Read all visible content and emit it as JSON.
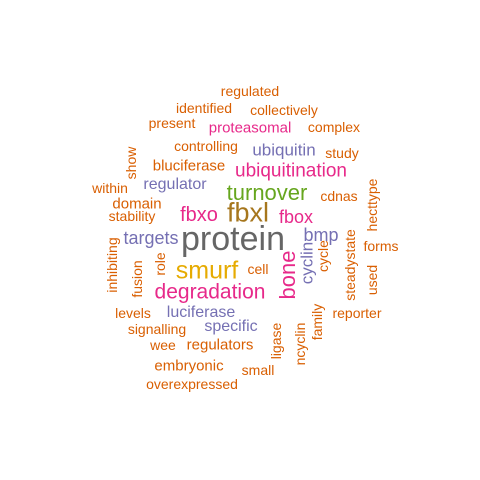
{
  "colors": {
    "orange": "#d95f02",
    "magenta": "#e7298a",
    "purple": "#7570b3",
    "green": "#66a61e",
    "gold": "#e6ab02",
    "brown": "#a6761d",
    "gray": "#666666",
    "pink": "#cc0077"
  },
  "words": [
    {
      "text": "regulated",
      "color": "orange"
    },
    {
      "text": "identified",
      "color": "orange"
    },
    {
      "text": "collectively",
      "color": "orange"
    },
    {
      "text": "present",
      "color": "orange"
    },
    {
      "text": "proteasomal",
      "color": "magenta"
    },
    {
      "text": "complex",
      "color": "orange"
    },
    {
      "text": "controlling",
      "color": "orange"
    },
    {
      "text": "ubiquitin",
      "color": "purple"
    },
    {
      "text": "study",
      "color": "orange"
    },
    {
      "text": "show",
      "color": "orange"
    },
    {
      "text": "bluciferase",
      "color": "orange"
    },
    {
      "text": "ubiquitination",
      "color": "magenta"
    },
    {
      "text": "within",
      "color": "orange"
    },
    {
      "text": "regulator",
      "color": "purple"
    },
    {
      "text": "turnover",
      "color": "green"
    },
    {
      "text": "cdnas",
      "color": "orange"
    },
    {
      "text": "domain",
      "color": "orange"
    },
    {
      "text": "hecttype",
      "color": "orange"
    },
    {
      "text": "stability",
      "color": "orange"
    },
    {
      "text": "fbxo",
      "color": "magenta"
    },
    {
      "text": "fbxl",
      "color": "brown"
    },
    {
      "text": "fbox",
      "color": "magenta"
    },
    {
      "text": "targets",
      "color": "purple"
    },
    {
      "text": "protein",
      "color": "gray"
    },
    {
      "text": "bmp",
      "color": "purple"
    },
    {
      "text": "forms",
      "color": "orange"
    },
    {
      "text": "inhibiting",
      "color": "orange"
    },
    {
      "text": "fusion",
      "color": "orange"
    },
    {
      "text": "role",
      "color": "orange"
    },
    {
      "text": "smurf",
      "color": "gold"
    },
    {
      "text": "cell",
      "color": "orange"
    },
    {
      "text": "bone",
      "color": "magenta"
    },
    {
      "text": "cyclin",
      "color": "purple"
    },
    {
      "text": "cycle",
      "color": "orange"
    },
    {
      "text": "steadystate",
      "color": "orange"
    },
    {
      "text": "used",
      "color": "orange"
    },
    {
      "text": "degradation",
      "color": "magenta"
    },
    {
      "text": "levels",
      "color": "orange"
    },
    {
      "text": "luciferase",
      "color": "purple"
    },
    {
      "text": "reporter",
      "color": "orange"
    },
    {
      "text": "signalling",
      "color": "orange"
    },
    {
      "text": "specific",
      "color": "purple"
    },
    {
      "text": "ligase",
      "color": "orange"
    },
    {
      "text": "ncyclin",
      "color": "orange"
    },
    {
      "text": "family",
      "color": "orange"
    },
    {
      "text": "wee",
      "color": "orange"
    },
    {
      "text": "regulators",
      "color": "orange"
    },
    {
      "text": "embryonic",
      "color": "orange"
    },
    {
      "text": "small",
      "color": "orange"
    },
    {
      "text": "overexpressed",
      "color": "orange"
    }
  ]
}
